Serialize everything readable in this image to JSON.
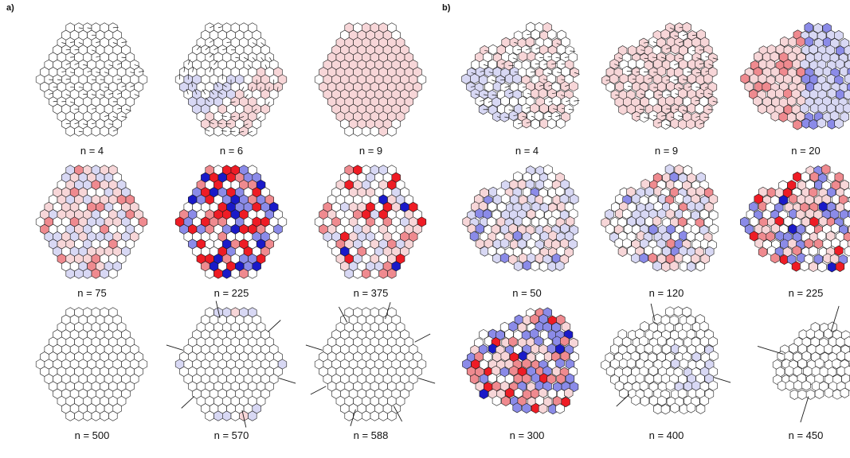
{
  "panels": [
    {
      "label": "a)",
      "tiles": [
        {
          "caption": "n = 4",
          "style": "hex-arrows"
        },
        {
          "caption": "n = 6",
          "style": "hex-swirl"
        },
        {
          "caption": "n = 9",
          "style": "hex-pink"
        },
        {
          "caption": "n = 75",
          "style": "hex-mixed"
        },
        {
          "caption": "n = 225",
          "style": "hex-pattern"
        },
        {
          "caption": "n = 375",
          "style": "hex-scatter"
        },
        {
          "caption": "n = 500",
          "style": "hex-plain-core"
        },
        {
          "caption": "n = 570",
          "style": "hex-rim"
        },
        {
          "caption": "n = 588",
          "style": "hex-spikes"
        }
      ]
    },
    {
      "label": "b)",
      "tiles": [
        {
          "caption": "n = 4",
          "style": "blob-arrows"
        },
        {
          "caption": "n = 9",
          "style": "blob-pink"
        },
        {
          "caption": "n = 20",
          "style": "blob-halves"
        },
        {
          "caption": "n = 50",
          "style": "blob-mixed"
        },
        {
          "caption": "n = 120",
          "style": "blob-mixed2"
        },
        {
          "caption": "n = 225",
          "style": "blob-defects"
        },
        {
          "caption": "n = 300",
          "style": "blob-strong"
        },
        {
          "caption": "n = 400",
          "style": "blob-plain-lines"
        },
        {
          "caption": "n = 450",
          "style": "blob-shrink"
        }
      ]
    }
  ],
  "colors": {
    "red": "#ee1c25",
    "blue": "#1a1ac8",
    "pink_light": "#f7d6d8",
    "pink_mid": "#ef8a8f",
    "blue_light": "#d8d8f4",
    "blue_mid": "#8b8be8",
    "edge": "#1a1a1a"
  }
}
